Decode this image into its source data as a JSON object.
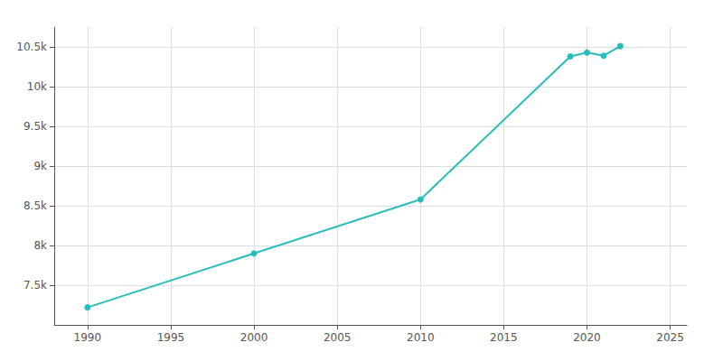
{
  "chart_data": {
    "type": "line",
    "x": [
      1990,
      2000,
      2010,
      2019,
      2020,
      2021,
      2022
    ],
    "values": [
      7220,
      7900,
      8580,
      10380,
      10430,
      10390,
      10510
    ],
    "color": "#29bcbc",
    "marker": "circle",
    "xlim": [
      1988,
      2026
    ],
    "ylim": [
      7000,
      10750
    ],
    "xticks": [
      1990,
      1995,
      2000,
      2005,
      2010,
      2015,
      2020,
      2025
    ],
    "yticks": [
      {
        "value": 7500,
        "label": "7.5k"
      },
      {
        "value": 8000,
        "label": "8k"
      },
      {
        "value": 8500,
        "label": "8.5k"
      },
      {
        "value": 9000,
        "label": "9k"
      },
      {
        "value": 9500,
        "label": "9.5k"
      },
      {
        "value": 10000,
        "label": "10k"
      },
      {
        "value": 10500,
        "label": "10.5k"
      }
    ],
    "grid": true
  }
}
